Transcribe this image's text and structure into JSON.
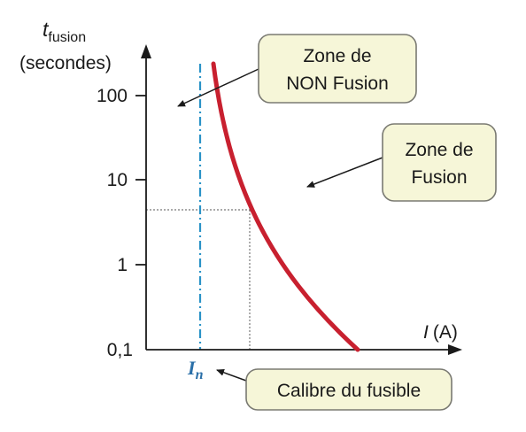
{
  "axis": {
    "y_title_var": "t",
    "y_title_sub": "fusion",
    "y_title_unit": "(secondes)",
    "x_title_var": "I",
    "x_title_unit": "(A)"
  },
  "y_ticks": [
    "100",
    "10",
    "1",
    "0,1"
  ],
  "in_label": {
    "var": "I",
    "sub": "n"
  },
  "boxes": {
    "non_fusion": [
      "Zone de",
      "NON Fusion"
    ],
    "fusion": [
      "Zone de",
      "Fusion"
    ],
    "calibre": "Calibre du fusible"
  },
  "colors": {
    "curve": "#c8202f",
    "in_line": "#2a93c7",
    "in_label": "#2a6fa8",
    "box_fill": "#f6f6d8",
    "box_stroke": "#7a7a72",
    "axis": "#1a1a1a"
  }
}
